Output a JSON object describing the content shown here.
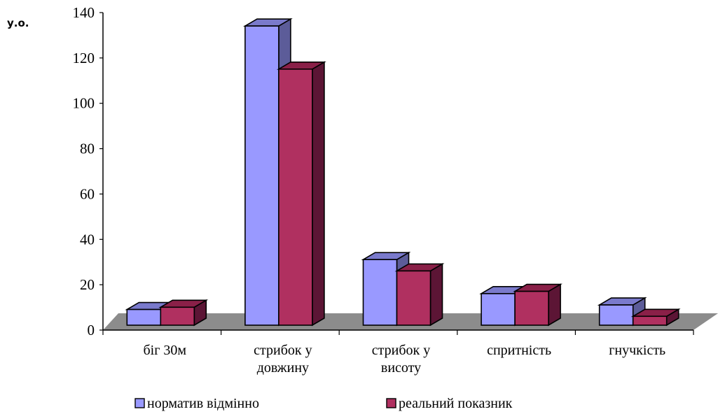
{
  "chart_data": {
    "type": "bar",
    "title": "",
    "ylabel": "у.о.",
    "xlabel": "",
    "ylim": [
      0,
      140
    ],
    "yticks": [
      0,
      20,
      40,
      60,
      80,
      100,
      120,
      140
    ],
    "categories": [
      [
        "біг 30м"
      ],
      [
        "стрибок у",
        "довжину"
      ],
      [
        "стрибок у",
        "висоту"
      ],
      [
        "спритність"
      ],
      [
        "гнучкість"
      ]
    ],
    "series": [
      {
        "name": "норматив відмінно",
        "values": [
          6,
          131,
          28,
          13,
          8
        ],
        "color": "#9999ff",
        "side_color": "#5c5c99",
        "top_color": "#7a7acc"
      },
      {
        "name": "реальний показник",
        "values": [
          7,
          112,
          23,
          14,
          3
        ],
        "color": "#b03060",
        "side_color": "#5c1535",
        "top_color": "#8a2048"
      }
    ],
    "grid": false,
    "legend_position": "bottom",
    "floor_color": "#8c8c8c"
  }
}
